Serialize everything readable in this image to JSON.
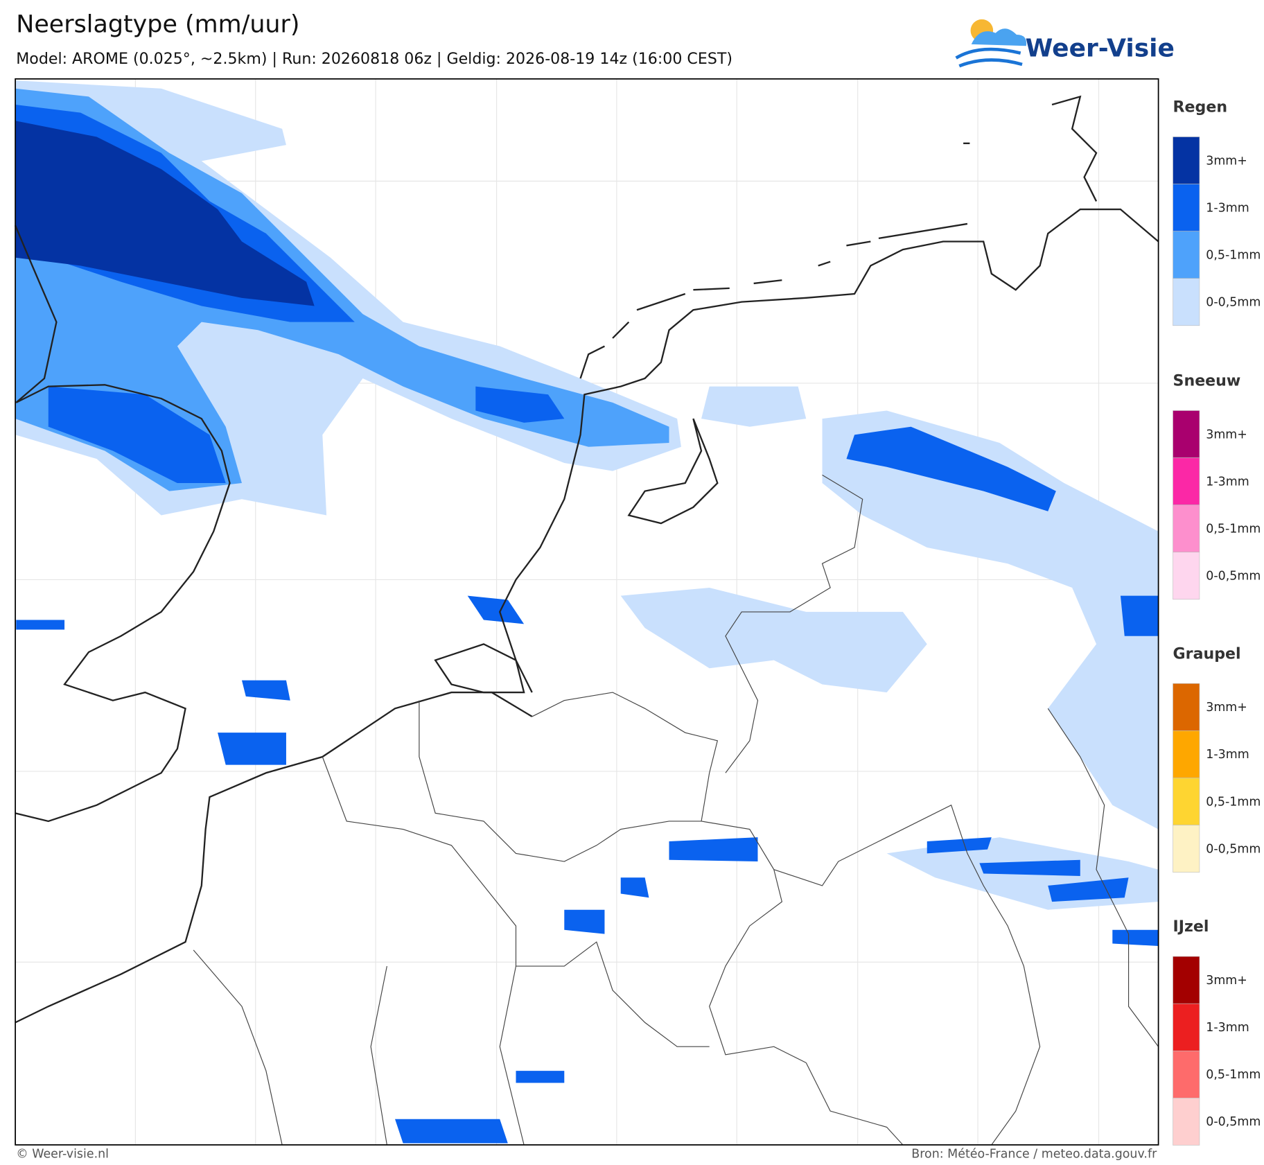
{
  "header": {
    "title": "Neerslagtype (mm/uur)",
    "subtitle": "Model: AROME (0.025°, ~2.5km)  |  Run: 20260818 06z  |  Geldig: 2026-08-19 14z (16:00 CEST)",
    "logo": "Weer-Visie"
  },
  "legend": [
    {
      "title": "Regen",
      "items": [
        "3mm+",
        "1-3mm",
        "0,5-1mm",
        "0-0,5mm"
      ],
      "colors": [
        "#0433a3",
        "#0a62ef",
        "#4ea2fb",
        "#c9e0fd"
      ]
    },
    {
      "title": "Sneeuw",
      "items": [
        "3mm+",
        "1-3mm",
        "0,5-1mm",
        "0-0,5mm"
      ],
      "colors": [
        "#a9006e",
        "#fb28a6",
        "#fd8fcd",
        "#fed6ee"
      ]
    },
    {
      "title": "Graupel",
      "items": [
        "3mm+",
        "1-3mm",
        "0,5-1mm",
        "0-0,5mm"
      ],
      "colors": [
        "#dc6700",
        "#fea700",
        "#fed531",
        "#fef2c4"
      ]
    },
    {
      "title": "IJzel",
      "items": [
        "3mm+",
        "1-3mm",
        "0,5-1mm",
        "0-0,5mm"
      ],
      "colors": [
        "#a30000",
        "#ec1f20",
        "#fe6b6b",
        "#fecfcf"
      ]
    }
  ],
  "footer": {
    "left": "© Weer-visie.nl",
    "right": "Bron: Météo-France / meteo.data.gouv.fr"
  }
}
